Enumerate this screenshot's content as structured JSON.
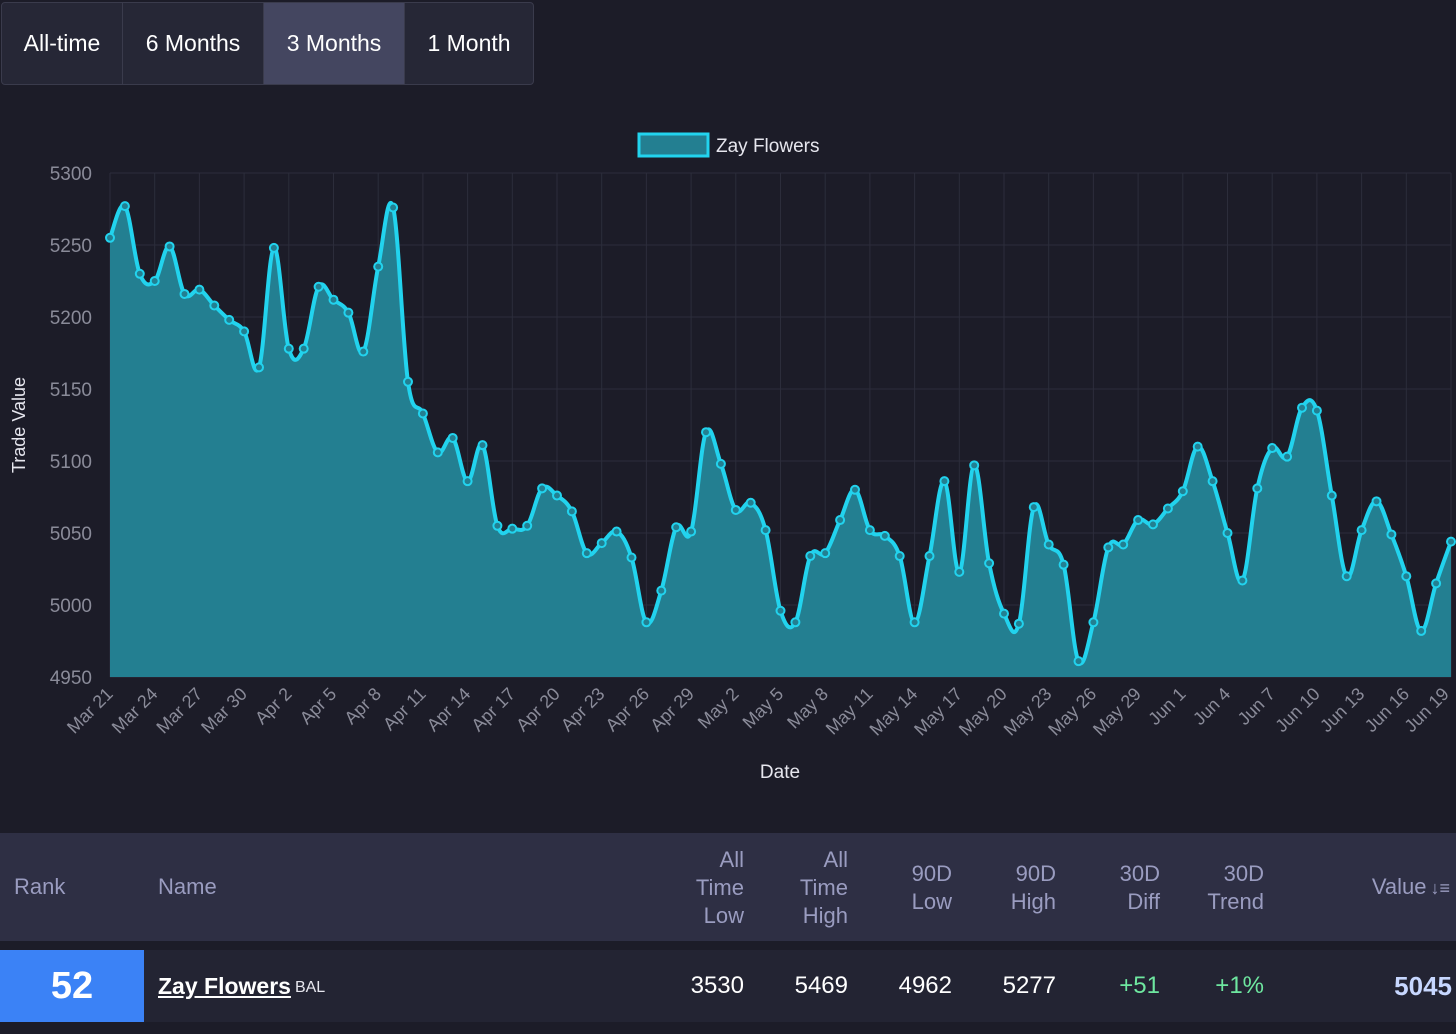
{
  "range_tabs": [
    "All-time",
    "6 Months",
    "3 Months",
    "1 Month"
  ],
  "active_range": "3 Months",
  "colors": {
    "background": "#1c1c28",
    "line": "#22d3ee",
    "fill": "#237f91",
    "active_tab": "#444660",
    "rank_badge": "#3b82f6",
    "positive": "#6ee7a0"
  },
  "chart_data": {
    "type": "area",
    "xlabel": "Date",
    "ylabel": "Trade Value",
    "ylim": [
      4950,
      5300
    ],
    "y_ticks": [
      5300,
      5250,
      5200,
      5150,
      5100,
      5050,
      5000,
      4950
    ],
    "x_tick_labels": [
      "Mar 21",
      "Mar 24",
      "Mar 27",
      "Mar 30",
      "Apr 2",
      "Apr 5",
      "Apr 8",
      "Apr 11",
      "Apr 14",
      "Apr 17",
      "Apr 20",
      "Apr 23",
      "Apr 26",
      "Apr 29",
      "May 2",
      "May 5",
      "May 8",
      "May 11",
      "May 14",
      "May 17",
      "May 20",
      "May 23",
      "May 26",
      "May 29",
      "Jun 1",
      "Jun 4",
      "Jun 7",
      "Jun 10",
      "Jun 13",
      "Jun 16",
      "Jun 19"
    ],
    "legend_position": "top-center",
    "grid": true,
    "series": [
      {
        "name": "Zay Flowers",
        "values": [
          5255,
          5277,
          5230,
          5225,
          5249,
          5216,
          5219,
          5208,
          5198,
          5190,
          5165,
          5248,
          5178,
          5178,
          5221,
          5212,
          5203,
          5176,
          5235,
          5276,
          5155,
          5133,
          5106,
          5116,
          5086,
          5111,
          5055,
          5053,
          5055,
          5081,
          5076,
          5065,
          5036,
          5043,
          5051,
          5033,
          4988,
          5010,
          5054,
          5051,
          5120,
          5098,
          5066,
          5071,
          5052,
          4996,
          4988,
          5034,
          5036,
          5059,
          5080,
          5052,
          5048,
          5034,
          4988,
          5034,
          5086,
          5023,
          5097,
          5029,
          4994,
          4987,
          5068,
          5042,
          5028,
          4961,
          4988,
          5040,
          5042,
          5059,
          5056,
          5067,
          5079,
          5110,
          5086,
          5050,
          5017,
          5081,
          5109,
          5103,
          5137,
          5135,
          5076,
          5020,
          5052,
          5072,
          5049,
          5020,
          4982,
          5015,
          5044
        ]
      }
    ]
  },
  "table": {
    "headers": {
      "rank": "Rank",
      "name": "Name",
      "all_time_low": [
        "All",
        "Time",
        "Low"
      ],
      "all_time_high": [
        "All",
        "Time",
        "High"
      ],
      "low_90d": [
        "90D",
        "Low"
      ],
      "high_90d": [
        "90D",
        "High"
      ],
      "diff_30d": [
        "30D",
        "Diff"
      ],
      "trend_30d": [
        "30D",
        "Trend"
      ],
      "value": "Value",
      "sort_icon": "sort-desc-icon"
    },
    "row": {
      "rank": "52",
      "name": "Zay Flowers",
      "team": "BAL",
      "all_time_low": "3530",
      "all_time_high": "5469",
      "low_90d": "4962",
      "high_90d": "5277",
      "diff_30d": "+51",
      "trend_30d": "+1%",
      "value": "5045"
    }
  }
}
